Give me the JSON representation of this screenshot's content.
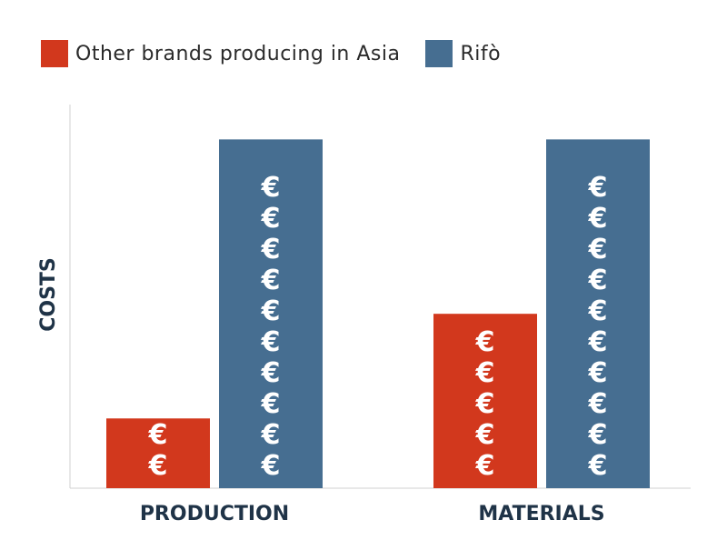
{
  "legend": {
    "items": [
      {
        "label": "Other brands producing in Asia",
        "color": "#d2381d"
      },
      {
        "label": "Rifò",
        "color": "#466e91"
      }
    ]
  },
  "chart_data": {
    "type": "bar",
    "categories": [
      "PRODUCTION",
      "MATERIALS"
    ],
    "series": [
      {
        "name": "Other brands producing in Asia",
        "values": [
          2,
          5
        ],
        "color": "#d2381d"
      },
      {
        "name": "Rifò",
        "values": [
          10,
          10
        ],
        "color": "#466e91"
      }
    ],
    "symbol": "€",
    "xlabel": "",
    "ylabel": "COSTS",
    "ylim": [
      0,
      11
    ]
  }
}
